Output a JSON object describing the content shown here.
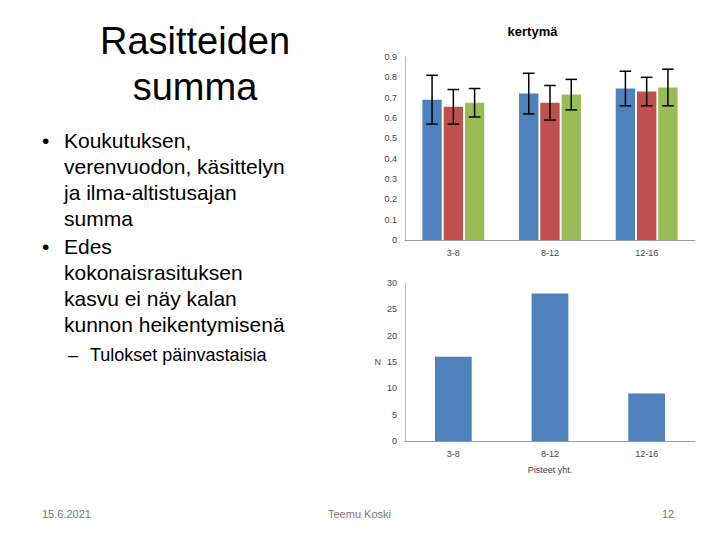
{
  "slide": {
    "title": "Rasitteiden summa",
    "bullets": [
      {
        "text": "Koukutuksen, verenvuodon, käsittelyn ja ilma-altistusajan summa",
        "sub": []
      },
      {
        "text": "Edes kokonaisrasituksen kasvu ei näy kalan kunnon heikentymisenä",
        "sub": [
          "Tulokset päinvastaisia"
        ]
      }
    ],
    "date": "15.6.2021",
    "author": "Teemu Koski",
    "page": "12"
  },
  "chart_data": [
    {
      "type": "bar",
      "title": "kertymä",
      "categories": [
        "3-8",
        "8-12",
        "12-16"
      ],
      "series": [
        {
          "color": "#4f81bd",
          "values": [
            0.69,
            0.72,
            0.745
          ],
          "errors": [
            0.12,
            0.1,
            0.085
          ]
        },
        {
          "color": "#c0504d",
          "values": [
            0.655,
            0.675,
            0.73
          ],
          "errors": [
            0.085,
            0.085,
            0.07
          ]
        },
        {
          "color": "#9bbb59",
          "values": [
            0.675,
            0.715,
            0.75
          ],
          "errors": [
            0.07,
            0.075,
            0.09
          ]
        }
      ],
      "ylim": [
        0,
        0.9
      ],
      "yticks": [
        0,
        0.1,
        0.2,
        0.3,
        0.4,
        0.5,
        0.6,
        0.7,
        0.8,
        0.9
      ],
      "grid": false
    },
    {
      "type": "bar",
      "categories": [
        "3-8",
        "8-12",
        "12-16"
      ],
      "values": [
        16,
        28,
        9
      ],
      "color": "#4f81bd",
      "x_label": "Pisteet yht.",
      "y_label": "N",
      "ylim": [
        0,
        30
      ],
      "yticks": [
        0,
        5,
        10,
        15,
        20,
        25,
        30
      ],
      "grid": false
    }
  ]
}
